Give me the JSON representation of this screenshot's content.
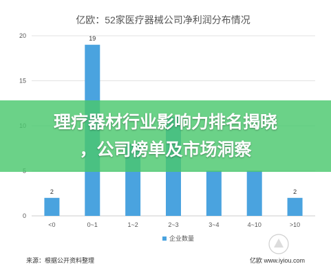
{
  "banner": {
    "line1": "理疗器材行业影响力排名揭晓",
    "line2": "，公司榜单及市场洞察"
  },
  "footer": {
    "source": "来源：根据公开资料整理",
    "watermark": "亿欧 www.iyiou.com"
  },
  "colors": {
    "bar": "#4aa3df",
    "banner": "#4ac86e",
    "grid": "#e2e2e2",
    "axis": "#cccccc"
  },
  "chart_data": {
    "type": "bar",
    "title": "亿欧：52家医疗器械公司净利润分布情况",
    "categories": [
      "<0",
      "0~1",
      "1~2",
      "2~3",
      "3~4",
      "4~10",
      ">10"
    ],
    "series": [
      {
        "name": "企业数量",
        "values": [
          2,
          19,
          8,
          11,
          5,
          5,
          2
        ]
      }
    ],
    "data_labels": [
      "2",
      "19",
      "",
      "",
      "",
      "",
      "2"
    ],
    "yticks": [
      0,
      5,
      10,
      15,
      20
    ],
    "ylim": [
      0,
      20
    ],
    "xlabel": "",
    "ylabel": "",
    "grid": true,
    "legend": "bottom-center"
  }
}
